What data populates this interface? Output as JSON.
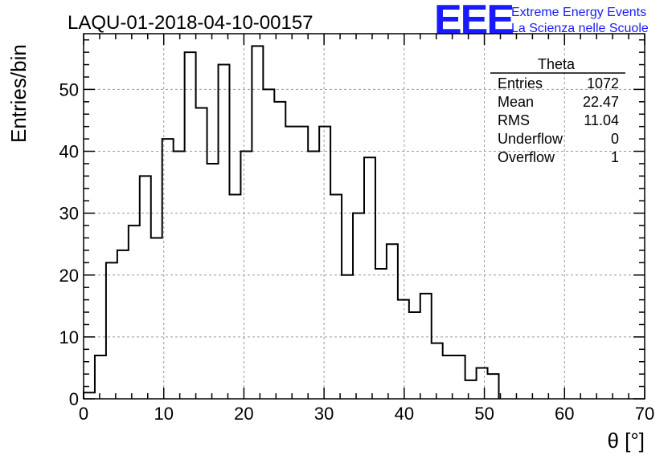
{
  "header": {
    "run_title": "LAQU-01-2018-04-10-00157",
    "logo_text": "EEE",
    "logo_line1": "Extreme Energy Events",
    "logo_line2": "La Scienza nelle Scuole"
  },
  "stats": {
    "title": "Theta",
    "rows": [
      {
        "key": "Entries",
        "value": "1072"
      },
      {
        "key": "Mean",
        "value": "22.47"
      },
      {
        "key": "RMS",
        "value": "11.04"
      },
      {
        "key": "Underflow",
        "value": "0"
      },
      {
        "key": "Overflow",
        "value": "1"
      }
    ]
  },
  "colors": {
    "logo": "#1a1aff",
    "line": "#000000",
    "grid": "#9a9a9a"
  },
  "chart_data": {
    "type": "bar",
    "style": "step-histogram",
    "title": "LAQU-01-2018-04-10-00157",
    "xlabel": "θ [°]",
    "ylabel": "Entries/bin",
    "xlim": [
      0,
      70
    ],
    "ylim": [
      0,
      59
    ],
    "grid": true,
    "x_ticks": [
      0,
      10,
      20,
      30,
      40,
      50,
      60,
      70
    ],
    "y_ticks": [
      0,
      10,
      20,
      30,
      40,
      50
    ],
    "bin_edges": [
      0,
      1.4,
      2.8,
      4.2,
      5.6,
      7.0,
      8.4,
      9.8,
      11.2,
      12.6,
      14.0,
      15.4,
      16.8,
      18.2,
      19.6,
      21.0,
      22.4,
      23.8,
      25.2,
      26.6,
      28.0,
      29.4,
      30.8,
      32.2,
      33.6,
      35.0,
      36.4,
      37.8,
      39.2,
      40.6,
      42.0,
      43.4,
      44.8,
      46.2,
      47.6,
      49.0,
      50.4,
      51.8
    ],
    "values": [
      1,
      7,
      22,
      24,
      28,
      36,
      26,
      42,
      40,
      56,
      47,
      38,
      54,
      33,
      40,
      57,
      50,
      48,
      44,
      44,
      40,
      44,
      33,
      20,
      30,
      39,
      21,
      25,
      16,
      14,
      17,
      9,
      7,
      7,
      3,
      5,
      4
    ]
  }
}
